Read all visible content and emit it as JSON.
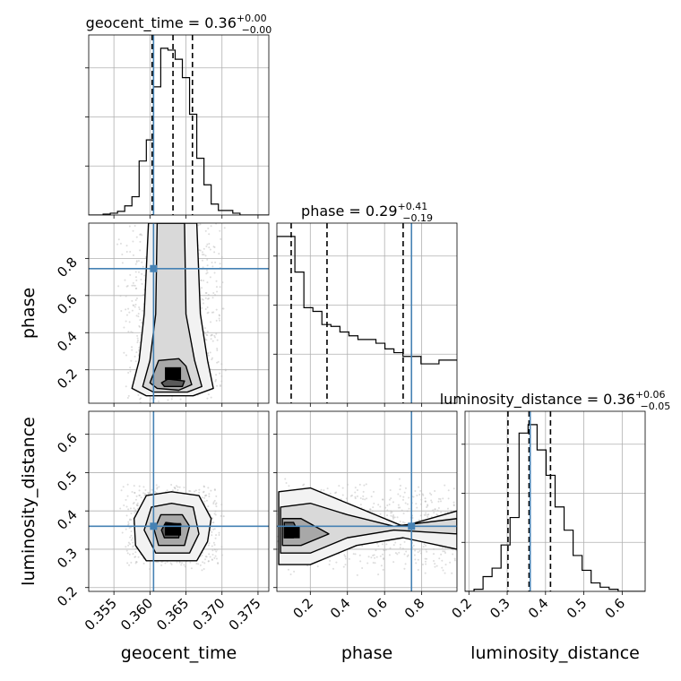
{
  "chart_data": {
    "type": "corner",
    "parameters": [
      "geocent_time",
      "phase",
      "luminosity_distance"
    ],
    "truths": {
      "geocent_time": 0.3605,
      "phase": 0.745,
      "luminosity_distance": 0.36
    },
    "truth_color": "#4682b4",
    "titles": {
      "geocent_time": {
        "name": "geocent_time",
        "median": "0.36",
        "plus": "+0.00",
        "minus": "−0.00"
      },
      "phase": {
        "name": "phase",
        "median": "0.29",
        "plus": "+0.41",
        "minus": "−0.19"
      },
      "luminosity_distance": {
        "name": "luminosity_distance",
        "median": "0.36",
        "plus": "+0.06",
        "minus": "−0.05"
      }
    },
    "ranges": {
      "geocent_time": [
        0.3515,
        0.3765
      ],
      "phase": [
        0.02,
        0.99
      ],
      "luminosity_distance": [
        0.19,
        0.66
      ]
    },
    "ticks": {
      "geocent_time": [
        0.355,
        0.36,
        0.365,
        0.37,
        0.375
      ],
      "phase": [
        0.2,
        0.4,
        0.6,
        0.8
      ],
      "luminosity_distance": [
        0.2,
        0.3,
        0.4,
        0.5,
        0.6
      ]
    },
    "tick_labels": {
      "geocent_time": [
        "0.355",
        "0.360",
        "0.365",
        "0.370",
        "0.375"
      ],
      "phase": [
        "0.2",
        "0.4",
        "0.6",
        "0.8"
      ],
      "luminosity_distance": [
        "0.2",
        "0.3",
        "0.4",
        "0.5",
        "0.6"
      ]
    },
    "row_ticks": {
      "phase": [
        0.2,
        0.4,
        0.6,
        0.8
      ],
      "luminosity_distance": [
        0.2,
        0.3,
        0.4,
        0.5,
        0.6
      ]
    },
    "row_tick_labels": {
      "phase": [
        "0.2",
        "0.4",
        "0.6",
        "0.8"
      ],
      "luminosity_distance": [
        "0.2",
        "0.3",
        "0.4",
        "0.5",
        "0.6"
      ]
    },
    "quantiles": {
      "geocent_time": [
        0.3603,
        0.3632,
        0.3659
      ],
      "phase": [
        0.097,
        0.29,
        0.7
      ],
      "luminosity_distance": [
        0.302,
        0.357,
        0.413
      ]
    },
    "histograms": {
      "geocent_time": {
        "edges": [
          0.3515,
          0.3525,
          0.3535,
          0.3545,
          0.3555,
          0.3565,
          0.3575,
          0.3585,
          0.3595,
          0.3605,
          0.3615,
          0.3625,
          0.3635,
          0.3645,
          0.3655,
          0.3665,
          0.3675,
          0.3685,
          0.3695,
          0.3705,
          0.3715,
          0.3725,
          0.3735,
          0.3745,
          0.3755,
          0.3765
        ],
        "counts": [
          0,
          0,
          1,
          2,
          4,
          10,
          20,
          59,
          82,
          140,
          182,
          180,
          170,
          150,
          110,
          62,
          33,
          12,
          5,
          5,
          2,
          0,
          0,
          0,
          0
        ]
      },
      "phase": {
        "edges": [
          0.02,
          0.0685,
          0.117,
          0.1655,
          0.214,
          0.2625,
          0.311,
          0.3595,
          0.408,
          0.4565,
          0.505,
          0.5535,
          0.602,
          0.6505,
          0.699,
          0.7475,
          0.796,
          0.8445,
          0.893,
          0.9415,
          0.99
        ],
        "counts": [
          178,
          178,
          140,
          102,
          98,
          84,
          82,
          76,
          72,
          68,
          68,
          64,
          58,
          54,
          50,
          50,
          42,
          42,
          46,
          46
        ]
      },
      "luminosity_distance": {
        "edges": [
          0.19,
          0.2135,
          0.237,
          0.2605,
          0.284,
          0.3075,
          0.331,
          0.3545,
          0.378,
          0.4015,
          0.425,
          0.4485,
          0.472,
          0.4955,
          0.519,
          0.5425,
          0.566,
          0.5895,
          0.613,
          0.6365,
          0.66
        ],
        "counts": [
          0,
          2,
          14,
          22,
          44,
          70,
          150,
          158,
          134,
          110,
          80,
          58,
          34,
          20,
          8,
          4,
          2,
          0,
          0,
          0
        ]
      }
    },
    "density_2d": {
      "phase_vs_geocent_time": {
        "center": [
          0.3632,
          0.18
        ],
        "contours": [
          [
            [
              0.3595,
              0.06
            ],
            [
              0.366,
              0.06
            ],
            [
              0.3688,
              0.1
            ],
            [
              0.368,
              0.25
            ],
            [
              0.367,
              0.5
            ],
            [
              0.3665,
              0.99
            ],
            [
              0.3598,
              0.99
            ],
            [
              0.3592,
              0.5
            ],
            [
              0.3585,
              0.25
            ],
            [
              0.3575,
              0.1
            ]
          ],
          [
            [
              0.3605,
              0.08
            ],
            [
              0.3652,
              0.08
            ],
            [
              0.3672,
              0.11
            ],
            [
              0.3662,
              0.25
            ],
            [
              0.365,
              0.5
            ],
            [
              0.3648,
              0.99
            ],
            [
              0.361,
              0.99
            ],
            [
              0.3608,
              0.5
            ],
            [
              0.36,
              0.25
            ],
            [
              0.359,
              0.11
            ]
          ],
          [
            [
              0.361,
              0.1
            ],
            [
              0.364,
              0.09
            ],
            [
              0.3658,
              0.12
            ],
            [
              0.365,
              0.22
            ],
            [
              0.364,
              0.26
            ],
            [
              0.3612,
              0.25
            ],
            [
              0.36,
              0.13
            ]
          ],
          [
            [
              0.362,
              0.11
            ],
            [
              0.3645,
              0.11
            ],
            [
              0.3648,
              0.14
            ],
            [
              0.3625,
              0.15
            ],
            [
              0.3616,
              0.13
            ]
          ]
        ]
      },
      "luminosity_distance_vs_geocent_time": {
        "center": [
          0.3632,
          0.352
        ],
        "contours": [
          [
            [
              0.3595,
              0.27
            ],
            [
              0.3665,
              0.27
            ],
            [
              0.368,
              0.32
            ],
            [
              0.3685,
              0.38
            ],
            [
              0.3668,
              0.44
            ],
            [
              0.363,
              0.45
            ],
            [
              0.3595,
              0.44
            ],
            [
              0.3578,
              0.38
            ],
            [
              0.358,
              0.31
            ]
          ],
          [
            [
              0.3608,
              0.29
            ],
            [
              0.3655,
              0.29
            ],
            [
              0.3668,
              0.34
            ],
            [
              0.366,
              0.41
            ],
            [
              0.363,
              0.42
            ],
            [
              0.3602,
              0.41
            ],
            [
              0.3592,
              0.35
            ]
          ],
          [
            [
              0.3612,
              0.31
            ],
            [
              0.3648,
              0.31
            ],
            [
              0.3655,
              0.36
            ],
            [
              0.3645,
              0.39
            ],
            [
              0.3615,
              0.39
            ],
            [
              0.3606,
              0.35
            ]
          ],
          [
            [
              0.362,
              0.33
            ],
            [
              0.364,
              0.33
            ],
            [
              0.3643,
              0.365
            ],
            [
              0.3622,
              0.37
            ],
            [
              0.3616,
              0.35
            ]
          ]
        ]
      },
      "luminosity_distance_vs_phase": {
        "center": [
          0.1,
          0.345
        ],
        "contours": [
          [
            [
              0.03,
              0.26
            ],
            [
              0.2,
              0.26
            ],
            [
              0.45,
              0.31
            ],
            [
              0.7,
              0.33
            ],
            [
              0.99,
              0.3
            ],
            [
              0.99,
              0.4
            ],
            [
              0.7,
              0.36
            ],
            [
              0.45,
              0.41
            ],
            [
              0.2,
              0.46
            ],
            [
              0.03,
              0.45
            ]
          ],
          [
            [
              0.04,
              0.29
            ],
            [
              0.2,
              0.29
            ],
            [
              0.4,
              0.33
            ],
            [
              0.65,
              0.35
            ],
            [
              0.99,
              0.34
            ],
            [
              0.99,
              0.38
            ],
            [
              0.65,
              0.36
            ],
            [
              0.4,
              0.39
            ],
            [
              0.2,
              0.42
            ],
            [
              0.04,
              0.41
            ]
          ],
          [
            [
              0.05,
              0.31
            ],
            [
              0.15,
              0.31
            ],
            [
              0.3,
              0.34
            ],
            [
              0.15,
              0.38
            ],
            [
              0.05,
              0.38
            ]
          ],
          [
            [
              0.06,
              0.33
            ],
            [
              0.11,
              0.33
            ],
            [
              0.13,
              0.35
            ],
            [
              0.11,
              0.37
            ],
            [
              0.06,
              0.37
            ]
          ]
        ]
      }
    },
    "grid": true,
    "xlabels": [
      "geocent_time",
      "phase",
      "luminosity_distance"
    ],
    "ylabels": [
      "phase",
      "luminosity_distance"
    ]
  }
}
